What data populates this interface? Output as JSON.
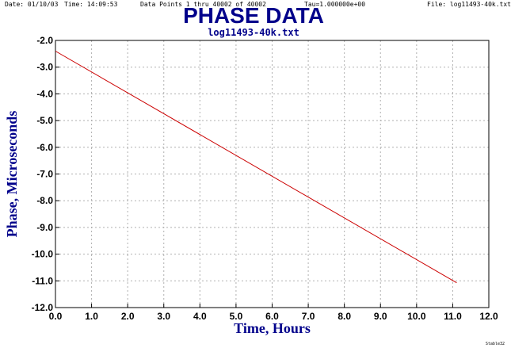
{
  "header": {
    "date": "Date: 01/10/03",
    "time": "Time: 14:09:53",
    "data_points": "Data Points 1 thru 40002 of 40002",
    "tau": "Tau=1.000000e+00",
    "file": "File: log11493-40k.txt"
  },
  "footer_mark": "Stable32",
  "chart_data": {
    "type": "line",
    "title": "PHASE DATA",
    "subtitle": "log11493-40k.txt",
    "xlabel": "Time, Hours",
    "ylabel": "Phase, Microseconds",
    "xlim": [
      0,
      12
    ],
    "ylim": [
      -12,
      -2
    ],
    "x_ticks": [
      "0.0",
      "1.0",
      "2.0",
      "3.0",
      "4.0",
      "5.0",
      "6.0",
      "7.0",
      "8.0",
      "9.0",
      "10.0",
      "11.0",
      "12.0"
    ],
    "y_ticks": [
      "-2.0",
      "-3.0",
      "-4.0",
      "-5.0",
      "-6.0",
      "-7.0",
      "-8.0",
      "-9.0",
      "-10.0",
      "-11.0",
      "-12.0"
    ],
    "grid": true,
    "series": [
      {
        "color": "#cc0000",
        "x": [
          0.0,
          11.11
        ],
        "y": [
          -2.4,
          -11.07
        ]
      }
    ],
    "colors": {
      "title": "#00008b",
      "axis_label": "#00008b",
      "series": "#cc0000",
      "grid": "#b0b0b0"
    }
  }
}
